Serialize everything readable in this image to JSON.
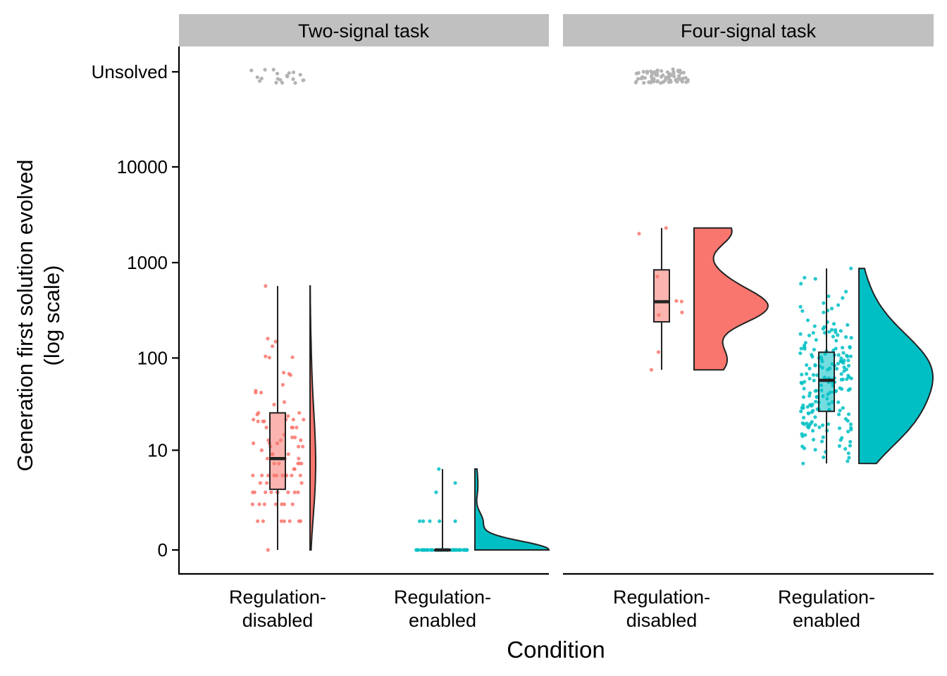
{
  "chart_data": {
    "type": "raincloud",
    "xlabel": "Condition",
    "ylabel_lines": [
      "Generation first solution evolved",
      "(log scale)"
    ],
    "y_scale": "log",
    "y_ticks": [
      {
        "value": 0,
        "label": "0"
      },
      {
        "value": 10,
        "label": "10"
      },
      {
        "value": 100,
        "label": "100"
      },
      {
        "value": 1000,
        "label": "1000"
      },
      {
        "value": 10000,
        "label": "10000"
      },
      {
        "value": "unsolved",
        "label": "Unsolved"
      }
    ],
    "categories": [
      {
        "lines": [
          "Regulation-",
          "disabled"
        ]
      },
      {
        "lines": [
          "Regulation-",
          "enabled"
        ]
      }
    ],
    "colors": {
      "regulation_disabled": "#F8766D",
      "regulation_enabled": "#00BFC4",
      "unsolved_points": "#B3B3B3",
      "strip": "#C0C0C0"
    },
    "panels": [
      {
        "title": "Two-signal task",
        "groups": [
          {
            "condition": "Regulation-disabled",
            "n_unsolved": 20,
            "n_solved": 95,
            "box": {
              "min": 0,
              "q1": 3.3,
              "median": 8,
              "q3": 26,
              "max": 570
            },
            "distribution": "flat, long-tailed from 0 to about 570"
          },
          {
            "condition": "Regulation-enabled",
            "n_unsolved": 0,
            "n_solved": 55,
            "box": {
              "min": 0,
              "q1": 0,
              "median": 0,
              "q3": 0,
              "max": 6
            },
            "distribution": "mass concentrated at 0, small bumps at 1 and 2"
          }
        ]
      },
      {
        "title": "Four-signal task",
        "groups": [
          {
            "condition": "Regulation-disabled",
            "n_unsolved": 70,
            "n_solved": 9,
            "box": {
              "min": 75,
              "q1": 240,
              "median": 390,
              "q3": 840,
              "max": 2300
            },
            "distribution": "peak near 350, range about 75 to 2300"
          },
          {
            "condition": "Regulation-enabled",
            "n_unsolved": 0,
            "n_solved": 200,
            "box": {
              "min": 7,
              "q1": 27,
              "median": 58,
              "q3": 115,
              "max": 870
            },
            "distribution": "peak near 65, range about 7 to 1400"
          }
        ]
      }
    ]
  }
}
